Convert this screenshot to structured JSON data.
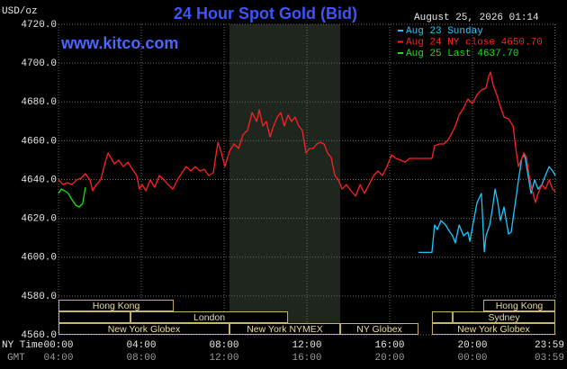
{
  "chart_data": {
    "type": "line",
    "title": "24 Hour Spot Gold (Bid)",
    "y_unit": "USD/oz",
    "website": "www.kitco.com",
    "timestamp": "August 25, 2026 01:14",
    "x_axis_label": "NY Time",
    "x_axis2_label": "GMT",
    "xlim": [
      0,
      24
    ],
    "xticks": [
      {
        "value": 0,
        "label": "00:00"
      },
      {
        "value": 4,
        "label": "04:00"
      },
      {
        "value": 8,
        "label": "08:00"
      },
      {
        "value": 12,
        "label": "12:00"
      },
      {
        "value": 16,
        "label": "16:00"
      },
      {
        "value": 20,
        "label": "20:00"
      },
      {
        "value": 23.98,
        "label": "23:59"
      }
    ],
    "gmt_labels": [
      "04:00",
      "08:00",
      "12:00",
      "16:00",
      "20:00",
      "00:00",
      "03:59"
    ],
    "ylim": [
      4560,
      4720
    ],
    "yticks": [
      {
        "value": 4560,
        "label": "4560.0"
      },
      {
        "value": 4580,
        "label": "4580.0"
      },
      {
        "value": 4600,
        "label": "4600.0"
      },
      {
        "value": 4620,
        "label": "4620.0"
      },
      {
        "value": 4640,
        "label": "4640.0"
      },
      {
        "value": 4660,
        "label": "4660.0"
      },
      {
        "value": 4680,
        "label": "4680.0"
      },
      {
        "value": 4700,
        "label": "4700.0"
      },
      {
        "value": 4720,
        "label": "4720.0"
      }
    ],
    "grid": true,
    "legend_position": "top-right",
    "series": [
      {
        "name": "Aug 23 Sunday",
        "color": "#19c8ff",
        "x": [
          17.39,
          18.04,
          18.17,
          18.3,
          18.48,
          18.7,
          18.91,
          19.04,
          19.17,
          19.35,
          19.57,
          19.78,
          19.87,
          20.0,
          20.22,
          20.43,
          20.57,
          20.65,
          20.83,
          20.96,
          21.09,
          21.22,
          21.35,
          21.52,
          21.74,
          21.87,
          22.04,
          22.22,
          22.39,
          22.52,
          22.65,
          22.83,
          23.0,
          23.17,
          23.35,
          23.52,
          23.7,
          23.87,
          24.0
        ],
        "values": [
          4602.5,
          4602.5,
          4616.6,
          4614.2,
          4618.9,
          4616.6,
          4612.9,
          4611.0,
          4607.3,
          4616.6,
          4611.0,
          4612.9,
          4608.2,
          4615.6,
          4628.2,
          4632.8,
          4602.7,
          4611.0,
          4616.6,
          4624.9,
          4635.1,
          4628.2,
          4618.9,
          4625.8,
          4611.9,
          4612.9,
          4625.8,
          4639.8,
          4651.4,
          4652.7,
          4644.4,
          4632.8,
          4639.8,
          4635.1,
          4637.4,
          4642.1,
          4646.7,
          4644.4,
          4642.1
        ]
      },
      {
        "name": "Aug 24 NY close 4650.70",
        "color": "#ff2020",
        "x": [
          0,
          0.22,
          0.43,
          0.65,
          0.87,
          1.09,
          1.3,
          1.52,
          1.65,
          1.83,
          2.04,
          2.26,
          2.39,
          2.52,
          2.7,
          2.91,
          3.13,
          3.35,
          3.57,
          3.78,
          3.91,
          4.04,
          4.22,
          4.43,
          4.65,
          4.87,
          5.09,
          5.3,
          5.52,
          5.74,
          5.96,
          6.17,
          6.39,
          6.61,
          6.83,
          7.04,
          7.26,
          7.48,
          7.7,
          7.87,
          8.04,
          8.26,
          8.48,
          8.7,
          8.91,
          9.13,
          9.35,
          9.57,
          9.7,
          9.87,
          10.04,
          10.22,
          10.39,
          10.57,
          10.74,
          10.91,
          11.09,
          11.26,
          11.43,
          11.61,
          11.78,
          11.96,
          12.13,
          12.3,
          12.48,
          12.65,
          12.83,
          13.0,
          13.17,
          13.35,
          13.52,
          13.7,
          13.91,
          14.13,
          14.35,
          14.57,
          14.78,
          15.0,
          15.22,
          15.43,
          15.65,
          15.87,
          16.09,
          16.3,
          16.52,
          16.74,
          16.96,
          17.17,
          17.61,
          18.04,
          18.17,
          18.39,
          18.61,
          18.83,
          19.0,
          19.17,
          19.35,
          19.57,
          19.78,
          20.0,
          20.22,
          20.43,
          20.65,
          20.78,
          20.87,
          21.0,
          21.17,
          21.3,
          21.52,
          21.74,
          21.96,
          22.09,
          22.22,
          22.35,
          22.48,
          22.61,
          22.74,
          22.87,
          23.04,
          23.17,
          23.35,
          23.52,
          23.7,
          23.87,
          24.0
        ],
        "values": [
          4639.8,
          4637.4,
          4638.4,
          4637.4,
          4639.8,
          4640.7,
          4643.0,
          4639.8,
          4634.2,
          4637.4,
          4639.8,
          4649.0,
          4653.7,
          4651.4,
          4648.1,
          4650.0,
          4646.7,
          4649.0,
          4645.3,
          4642.1,
          4635.1,
          4637.4,
          4634.2,
          4639.8,
          4636.0,
          4642.1,
          4639.8,
          4637.4,
          4635.1,
          4639.8,
          4643.5,
          4646.7,
          4644.4,
          4646.7,
          4644.4,
          4645.3,
          4642.1,
          4643.5,
          4659.2,
          4653.7,
          4646.7,
          4654.6,
          4658.3,
          4656.0,
          4663.0,
          4665.3,
          4674.5,
          4669.9,
          4675.9,
          4667.6,
          4669.9,
          4662.0,
          4667.6,
          4672.2,
          4674.5,
          4667.6,
          4673.2,
          4669.9,
          4672.2,
          4667.6,
          4665.3,
          4653.7,
          4656.0,
          4656.0,
          4658.3,
          4659.2,
          4658.3,
          4653.7,
          4651.4,
          4642.1,
          4639.8,
          4635.1,
          4637.4,
          4634.2,
          4631.4,
          4637.4,
          4632.8,
          4637.4,
          4642.1,
          4644.4,
          4642.1,
          4646.7,
          4652.7,
          4650.9,
          4650.0,
          4649.0,
          4650.9,
          4650.9,
          4650.9,
          4650.9,
          4657.4,
          4658.3,
          4658.3,
          4660.6,
          4663.9,
          4667.6,
          4673.2,
          4676.9,
          4681.5,
          4679.2,
          4683.8,
          4686.1,
          4687.1,
          4693.1,
          4695.4,
          4688.5,
          4683.8,
          4679.2,
          4672.2,
          4671.3,
          4667.6,
          4656.0,
          4646.7,
          4650.0,
          4653.7,
          4651.4,
          4642.1,
          4635.1,
          4628.2,
          4632.8,
          4637.4,
          4635.1,
          4639.8,
          4635.1,
          4633.7
        ]
      },
      {
        "name": "Aug 25 Last 4637.70",
        "color": "#19e019",
        "x": [
          0,
          0.13,
          0.3,
          0.48,
          0.65,
          0.83,
          1.0,
          1.17,
          1.3
        ],
        "values": [
          4632.8,
          4635.1,
          4634.2,
          4632.8,
          4629.6,
          4626.8,
          4625.8,
          4627.7,
          4636.0
        ]
      }
    ],
    "sessions": [
      [
        {
          "name": "Hong Kong",
          "start": 0,
          "end": 5.57
        },
        {
          "name": "Hong Kong",
          "start": 20.52,
          "end": 24
        }
      ],
      [
        {
          "name": null,
          "start": 0,
          "end": 3.48
        },
        {
          "name": "London",
          "start": 3.48,
          "end": 11.09
        },
        {
          "name": null,
          "start": 18.04,
          "end": 19.04
        },
        {
          "name": "Sydney",
          "start": 19.04,
          "end": 24
        }
      ],
      [
        {
          "name": "New York Globex",
          "start": 0,
          "end": 8.26
        },
        {
          "name": "New York NYMEX",
          "start": 8.26,
          "end": 13.61,
          "shade": true
        },
        {
          "name": "NY Globex",
          "start": 13.61,
          "end": 17.39
        },
        {
          "name": "New York Globex",
          "start": 18.04,
          "end": 24
        }
      ]
    ]
  }
}
